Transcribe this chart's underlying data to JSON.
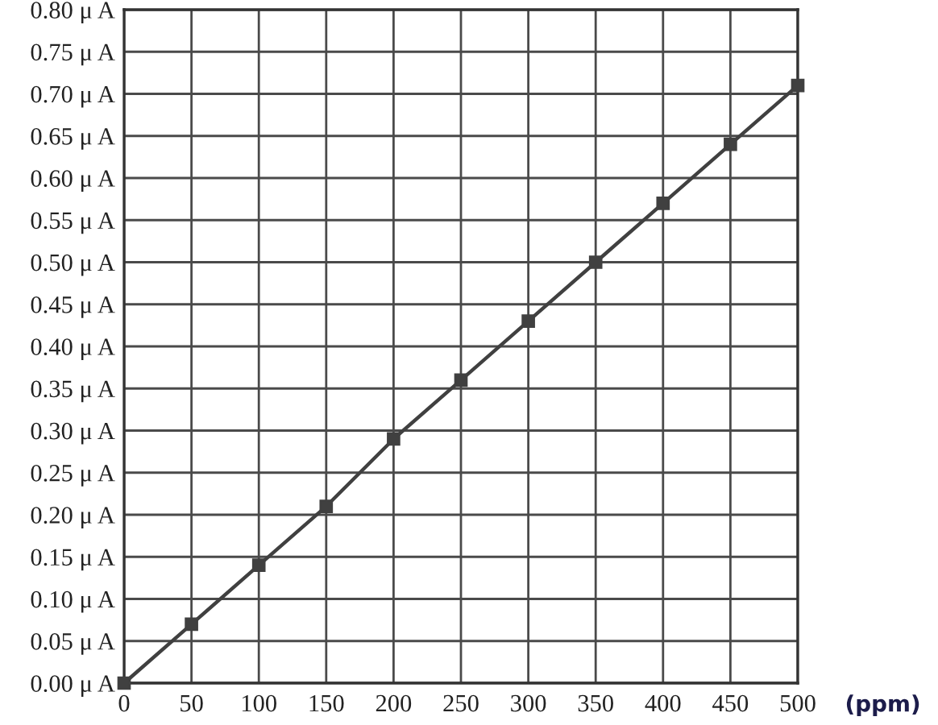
{
  "chart_data": {
    "type": "line",
    "xlabel": "(ppm)",
    "x": [
      0,
      50,
      100,
      150,
      200,
      250,
      300,
      350,
      400,
      450,
      500
    ],
    "values": [
      0,
      0.07,
      0.14,
      0.21,
      0.29,
      0.36,
      0.43,
      0.5,
      0.57,
      0.64,
      0.71
    ],
    "color": "#404040",
    "marker": "square",
    "line_style": "solid",
    "grid": true,
    "xlim": [
      0,
      500
    ],
    "ylim": [
      0,
      0.8
    ],
    "xticks": [
      0,
      50,
      100,
      150,
      200,
      250,
      300,
      350,
      400,
      450,
      500
    ],
    "yticks": [
      {
        "value": 0,
        "label": "0.00 μ A"
      },
      {
        "value": 0.05,
        "label": "0.05 μ A"
      },
      {
        "value": 0.1,
        "label": "0.10 μ A"
      },
      {
        "value": 0.15,
        "label": "0.15 μ A"
      },
      {
        "value": 0.2,
        "label": "0.20 μ A"
      },
      {
        "value": 0.25,
        "label": "0.25 μ A"
      },
      {
        "value": 0.3,
        "label": "0.30 μ A"
      },
      {
        "value": 0.35,
        "label": "0.35 μ A"
      },
      {
        "value": 0.4,
        "label": "0.40 μ A"
      },
      {
        "value": 0.45,
        "label": "0.45 μ A"
      },
      {
        "value": 0.5,
        "label": "0.50 μ A"
      },
      {
        "value": 0.55,
        "label": "0.55 μ A"
      },
      {
        "value": 0.6,
        "label": "0.60 μ A"
      },
      {
        "value": 0.65,
        "label": "0.65 μ A"
      },
      {
        "value": 0.7,
        "label": "0.70 μ A"
      },
      {
        "value": 0.75,
        "label": "0.75 μ A"
      },
      {
        "value": 0.8,
        "label": "0.80 μ A"
      }
    ]
  }
}
